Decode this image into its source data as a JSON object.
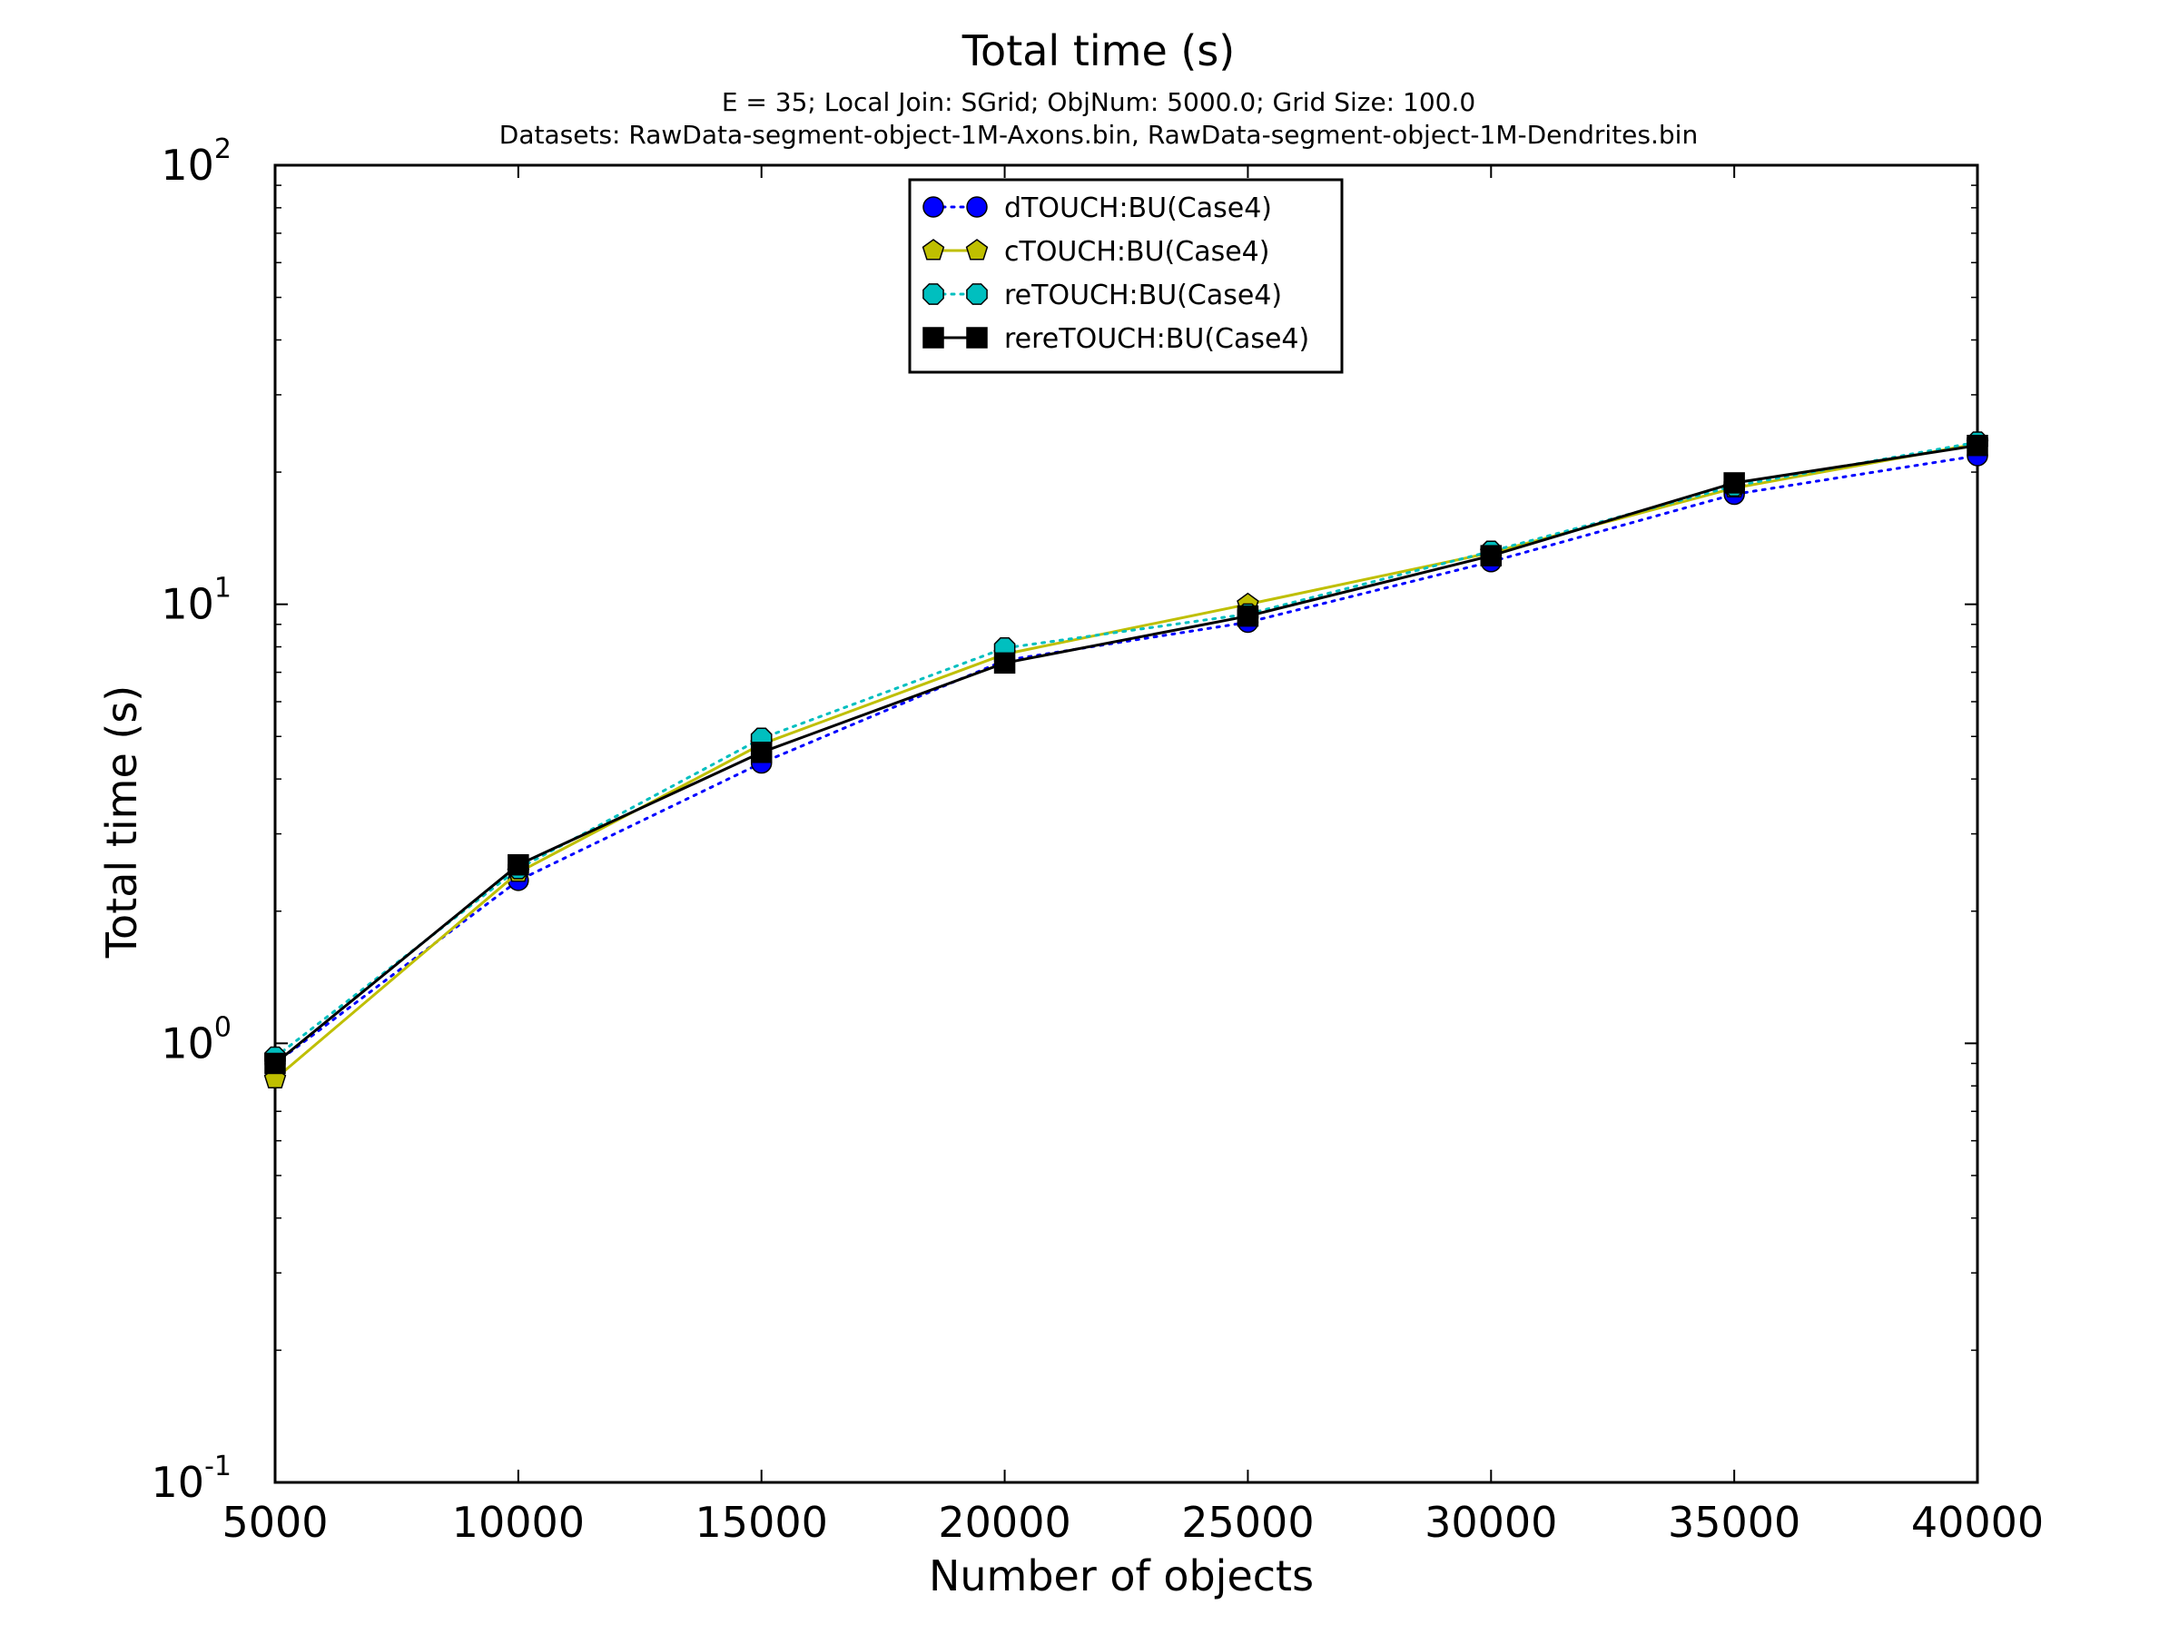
{
  "chart_data": {
    "type": "line",
    "title": "Total time (s)",
    "subtitle_lines": [
      "E = 35; Local Join: SGrid; ObjNum: 5000.0; Grid Size: 100.0",
      "Datasets: RawData-segment-object-1M-Axons.bin, RawData-segment-object-1M-Dendrites.bin"
    ],
    "xlabel": "Number of objects",
    "ylabel": "Total time (s)",
    "x": [
      5000,
      10000,
      15000,
      20000,
      25000,
      30000,
      35000,
      40000
    ],
    "xlim": [
      5000,
      40000
    ],
    "ylim": [
      0.1,
      100
    ],
    "yscale": "log",
    "xtick_labels": [
      "5000",
      "10000",
      "15000",
      "20000",
      "25000",
      "30000",
      "35000",
      "40000"
    ],
    "ytick_labels": [
      {
        "base": "10",
        "exp": "-1",
        "value": 0.1
      },
      {
        "base": "10",
        "exp": "0",
        "value": 1
      },
      {
        "base": "10",
        "exp": "1",
        "value": 10
      },
      {
        "base": "10",
        "exp": "2",
        "value": 100
      }
    ],
    "grid": false,
    "legend_position": "top-center",
    "series": [
      {
        "name": "dTOUCH:BU(Case4)",
        "color": "#0000ff",
        "line_style": "dotted",
        "marker": "circle",
        "values": [
          0.9,
          2.35,
          4.35,
          7.45,
          9.1,
          12.5,
          17.8,
          21.8
        ]
      },
      {
        "name": "cTOUCH:BU(Case4)",
        "color": "#bfbf00",
        "line_style": "solid",
        "marker": "pentagon",
        "values": [
          0.83,
          2.45,
          4.8,
          7.7,
          10.0,
          13.1,
          18.4,
          23.2
        ]
      },
      {
        "name": "reTOUCH:BU(Case4)",
        "color": "#00bfbf",
        "line_style": "dotted",
        "marker": "octagon",
        "values": [
          0.93,
          2.5,
          4.95,
          7.95,
          9.5,
          13.2,
          18.6,
          23.4
        ]
      },
      {
        "name": "rereTOUCH:BU(Case4)",
        "color": "#000000",
        "line_style": "solid",
        "marker": "square",
        "values": [
          0.9,
          2.55,
          4.6,
          7.35,
          9.4,
          12.9,
          18.9,
          23.0
        ]
      }
    ]
  }
}
